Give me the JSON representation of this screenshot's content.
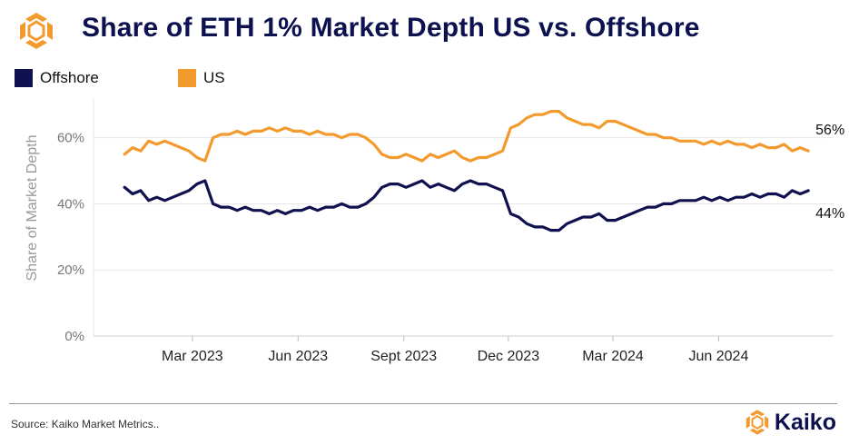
{
  "title": "Share of ETH 1% Market Depth US vs. Offshore",
  "source": "Source: Kaiko Market Metrics..",
  "brand": {
    "name": "Kaiko",
    "logo_icon": "kaiko-logo-icon"
  },
  "colors": {
    "offshore": "#10124f",
    "us": "#f39a2e",
    "title": "#0d1150",
    "grid": "#e6e6e6",
    "axis_text": "#777777"
  },
  "chart_data": {
    "type": "line",
    "title": "Share of ETH 1% Market Depth US vs. Offshore",
    "xlabel": "",
    "ylabel": "Share of Market Depth",
    "ylim": [
      0,
      72
    ],
    "yticks": [
      0,
      20,
      40,
      60
    ],
    "ytick_labels": [
      "0%",
      "20%",
      "40%",
      "60%"
    ],
    "xlim": [
      "2022-12-05",
      "2024-09-09"
    ],
    "xticks": [
      "2023-03-01",
      "2023-06-01",
      "2023-09-01",
      "2023-12-01",
      "2024-03-01",
      "2024-06-01"
    ],
    "xtick_labels": [
      "Mar 2023",
      "Jun 2023",
      "Sept 2023",
      "Dec 2023",
      "Mar 2024",
      "Jun 2024"
    ],
    "grid": "horizontal",
    "legend_position": "top-left",
    "series": [
      {
        "name": "Offshore",
        "color": "#10124f",
        "points": [
          [
            "2023-01-01",
            45
          ],
          [
            "2023-01-08",
            43
          ],
          [
            "2023-01-15",
            44
          ],
          [
            "2023-01-22",
            41
          ],
          [
            "2023-01-29",
            42
          ],
          [
            "2023-02-05",
            41
          ],
          [
            "2023-02-12",
            42
          ],
          [
            "2023-02-19",
            43
          ],
          [
            "2023-02-26",
            44
          ],
          [
            "2023-03-05",
            46
          ],
          [
            "2023-03-12",
            47
          ],
          [
            "2023-03-19",
            40
          ],
          [
            "2023-03-26",
            39
          ],
          [
            "2023-04-02",
            39
          ],
          [
            "2023-04-09",
            38
          ],
          [
            "2023-04-16",
            39
          ],
          [
            "2023-04-23",
            38
          ],
          [
            "2023-04-30",
            38
          ],
          [
            "2023-05-07",
            37
          ],
          [
            "2023-05-14",
            38
          ],
          [
            "2023-05-21",
            37
          ],
          [
            "2023-05-28",
            38
          ],
          [
            "2023-06-04",
            38
          ],
          [
            "2023-06-11",
            39
          ],
          [
            "2023-06-18",
            38
          ],
          [
            "2023-06-25",
            39
          ],
          [
            "2023-07-02",
            39
          ],
          [
            "2023-07-09",
            40
          ],
          [
            "2023-07-16",
            39
          ],
          [
            "2023-07-23",
            39
          ],
          [
            "2023-07-30",
            40
          ],
          [
            "2023-08-06",
            42
          ],
          [
            "2023-08-13",
            45
          ],
          [
            "2023-08-20",
            46
          ],
          [
            "2023-08-27",
            46
          ],
          [
            "2023-09-03",
            45
          ],
          [
            "2023-09-10",
            46
          ],
          [
            "2023-09-17",
            47
          ],
          [
            "2023-09-24",
            45
          ],
          [
            "2023-10-01",
            46
          ],
          [
            "2023-10-08",
            45
          ],
          [
            "2023-10-15",
            44
          ],
          [
            "2023-10-22",
            46
          ],
          [
            "2023-10-29",
            47
          ],
          [
            "2023-11-05",
            46
          ],
          [
            "2023-11-12",
            46
          ],
          [
            "2023-11-19",
            45
          ],
          [
            "2023-11-26",
            44
          ],
          [
            "2023-12-03",
            37
          ],
          [
            "2023-12-10",
            36
          ],
          [
            "2023-12-17",
            34
          ],
          [
            "2023-12-24",
            33
          ],
          [
            "2023-12-31",
            33
          ],
          [
            "2024-01-07",
            32
          ],
          [
            "2024-01-14",
            32
          ],
          [
            "2024-01-21",
            34
          ],
          [
            "2024-01-28",
            35
          ],
          [
            "2024-02-04",
            36
          ],
          [
            "2024-02-11",
            36
          ],
          [
            "2024-02-18",
            37
          ],
          [
            "2024-02-25",
            35
          ],
          [
            "2024-03-03",
            35
          ],
          [
            "2024-03-10",
            36
          ],
          [
            "2024-03-17",
            37
          ],
          [
            "2024-03-24",
            38
          ],
          [
            "2024-03-31",
            39
          ],
          [
            "2024-04-07",
            39
          ],
          [
            "2024-04-14",
            40
          ],
          [
            "2024-04-21",
            40
          ],
          [
            "2024-04-28",
            41
          ],
          [
            "2024-05-05",
            41
          ],
          [
            "2024-05-12",
            41
          ],
          [
            "2024-05-19",
            42
          ],
          [
            "2024-05-26",
            41
          ],
          [
            "2024-06-02",
            42
          ],
          [
            "2024-06-09",
            41
          ],
          [
            "2024-06-16",
            42
          ],
          [
            "2024-06-23",
            42
          ],
          [
            "2024-06-30",
            43
          ],
          [
            "2024-07-07",
            42
          ],
          [
            "2024-07-14",
            43
          ],
          [
            "2024-07-21",
            43
          ],
          [
            "2024-07-28",
            42
          ],
          [
            "2024-08-04",
            44
          ],
          [
            "2024-08-11",
            43
          ],
          [
            "2024-08-18",
            44
          ]
        ]
      },
      {
        "name": "US",
        "color": "#f39a2e",
        "points": [
          [
            "2023-01-01",
            55
          ],
          [
            "2023-01-08",
            57
          ],
          [
            "2023-01-15",
            56
          ],
          [
            "2023-01-22",
            59
          ],
          [
            "2023-01-29",
            58
          ],
          [
            "2023-02-05",
            59
          ],
          [
            "2023-02-12",
            58
          ],
          [
            "2023-02-19",
            57
          ],
          [
            "2023-02-26",
            56
          ],
          [
            "2023-03-05",
            54
          ],
          [
            "2023-03-12",
            53
          ],
          [
            "2023-03-19",
            60
          ],
          [
            "2023-03-26",
            61
          ],
          [
            "2023-04-02",
            61
          ],
          [
            "2023-04-09",
            62
          ],
          [
            "2023-04-16",
            61
          ],
          [
            "2023-04-23",
            62
          ],
          [
            "2023-04-30",
            62
          ],
          [
            "2023-05-07",
            63
          ],
          [
            "2023-05-14",
            62
          ],
          [
            "2023-05-21",
            63
          ],
          [
            "2023-05-28",
            62
          ],
          [
            "2023-06-04",
            62
          ],
          [
            "2023-06-11",
            61
          ],
          [
            "2023-06-18",
            62
          ],
          [
            "2023-06-25",
            61
          ],
          [
            "2023-07-02",
            61
          ],
          [
            "2023-07-09",
            60
          ],
          [
            "2023-07-16",
            61
          ],
          [
            "2023-07-23",
            61
          ],
          [
            "2023-07-30",
            60
          ],
          [
            "2023-08-06",
            58
          ],
          [
            "2023-08-13",
            55
          ],
          [
            "2023-08-20",
            54
          ],
          [
            "2023-08-27",
            54
          ],
          [
            "2023-09-03",
            55
          ],
          [
            "2023-09-10",
            54
          ],
          [
            "2023-09-17",
            53
          ],
          [
            "2023-09-24",
            55
          ],
          [
            "2023-10-01",
            54
          ],
          [
            "2023-10-08",
            55
          ],
          [
            "2023-10-15",
            56
          ],
          [
            "2023-10-22",
            54
          ],
          [
            "2023-10-29",
            53
          ],
          [
            "2023-11-05",
            54
          ],
          [
            "2023-11-12",
            54
          ],
          [
            "2023-11-19",
            55
          ],
          [
            "2023-11-26",
            56
          ],
          [
            "2023-12-03",
            63
          ],
          [
            "2023-12-10",
            64
          ],
          [
            "2023-12-17",
            66
          ],
          [
            "2023-12-24",
            67
          ],
          [
            "2023-12-31",
            67
          ],
          [
            "2024-01-07",
            68
          ],
          [
            "2024-01-14",
            68
          ],
          [
            "2024-01-21",
            66
          ],
          [
            "2024-01-28",
            65
          ],
          [
            "2024-02-04",
            64
          ],
          [
            "2024-02-11",
            64
          ],
          [
            "2024-02-18",
            63
          ],
          [
            "2024-02-25",
            65
          ],
          [
            "2024-03-03",
            65
          ],
          [
            "2024-03-10",
            64
          ],
          [
            "2024-03-17",
            63
          ],
          [
            "2024-03-24",
            62
          ],
          [
            "2024-03-31",
            61
          ],
          [
            "2024-04-07",
            61
          ],
          [
            "2024-04-14",
            60
          ],
          [
            "2024-04-21",
            60
          ],
          [
            "2024-04-28",
            59
          ],
          [
            "2024-05-05",
            59
          ],
          [
            "2024-05-12",
            59
          ],
          [
            "2024-05-19",
            58
          ],
          [
            "2024-05-26",
            59
          ],
          [
            "2024-06-02",
            58
          ],
          [
            "2024-06-09",
            59
          ],
          [
            "2024-06-16",
            58
          ],
          [
            "2024-06-23",
            58
          ],
          [
            "2024-06-30",
            57
          ],
          [
            "2024-07-07",
            58
          ],
          [
            "2024-07-14",
            57
          ],
          [
            "2024-07-21",
            57
          ],
          [
            "2024-07-28",
            58
          ],
          [
            "2024-08-04",
            56
          ],
          [
            "2024-08-11",
            57
          ],
          [
            "2024-08-18",
            56
          ]
        ]
      }
    ],
    "annotations": [
      {
        "text": "56%",
        "series": "US",
        "x": "2024-08-18",
        "y": 56
      },
      {
        "text": "44%",
        "series": "Offshore",
        "x": "2024-08-18",
        "y": 44
      }
    ]
  }
}
